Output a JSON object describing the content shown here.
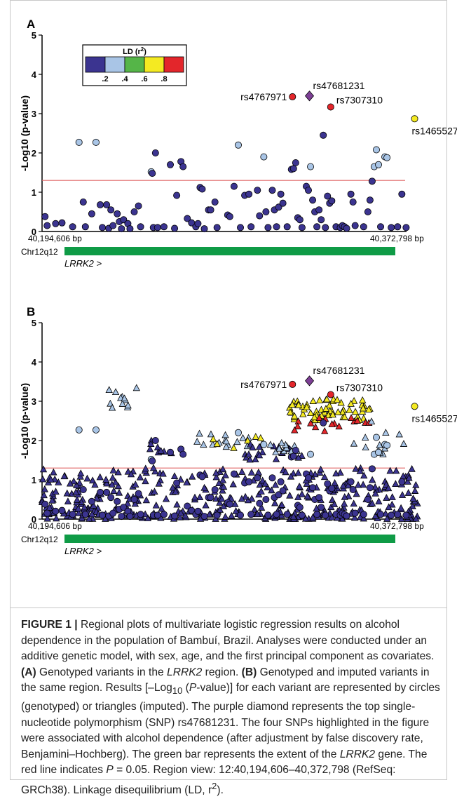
{
  "figure": {
    "panels": [
      "A",
      "B"
    ],
    "gene_label": "LRRK2 >",
    "chromosome_band": "Chr12q12",
    "x_start_label": "40,194,606 bp",
    "x_end_label": "40,372,798 bp",
    "y_axis_label": "-Log10 (p-value)",
    "legend": {
      "title_main": "LD (r",
      "title_sup": "2",
      "title_end": ")",
      "ticks": [
        ".2",
        ".4",
        ".6",
        ".8"
      ],
      "colors": [
        "#3b3490",
        "#a9c5e6",
        "#55b548",
        "#f4ea22",
        "#e3262b"
      ]
    },
    "threshold_color": "#e06666",
    "gene_bar_color": "#0f9b46",
    "top_snp_color": "#7d3f95"
  },
  "chart_data": [
    {
      "panel": "A",
      "type": "scatter",
      "xlim": [
        40194606,
        40372798
      ],
      "ylim": [
        0,
        5
      ],
      "yticks": [
        0,
        1,
        2,
        3,
        4,
        5
      ],
      "threshold_y": 1.3,
      "labeled_snps": [
        {
          "name": "rs47681231",
          "x": 40320500,
          "y": 3.45,
          "shape": "diamond",
          "ld": "top"
        },
        {
          "name": "rs4767971",
          "x": 40312500,
          "y": 3.43,
          "shape": "circle",
          "ld": 0.9
        },
        {
          "name": "rs7307310",
          "x": 40330500,
          "y": 3.17,
          "shape": "circle",
          "ld": 0.9
        },
        {
          "name": "rs1465527",
          "x": 40370000,
          "y": 2.87,
          "shape": "circle",
          "ld": 0.7
        }
      ],
      "points": [
        {
          "x": 40196000,
          "y": 0.38,
          "ld": 0.1
        },
        {
          "x": 40197000,
          "y": 0.15,
          "ld": 0.1
        },
        {
          "x": 40201000,
          "y": 0.2,
          "ld": 0.1
        },
        {
          "x": 40204000,
          "y": 0.22,
          "ld": 0.1
        },
        {
          "x": 40209000,
          "y": 0.12,
          "ld": 0.1
        },
        {
          "x": 40212000,
          "y": 2.27,
          "ld": 0.3
        },
        {
          "x": 40214000,
          "y": 0.75,
          "ld": 0.1
        },
        {
          "x": 40215000,
          "y": 0.12,
          "ld": 0.1
        },
        {
          "x": 40218000,
          "y": 0.45,
          "ld": 0.1
        },
        {
          "x": 40220000,
          "y": 2.27,
          "ld": 0.3
        },
        {
          "x": 40222000,
          "y": 0.68,
          "ld": 0.1
        },
        {
          "x": 40223000,
          "y": 0.1,
          "ld": 0.1
        },
        {
          "x": 40225000,
          "y": 0.68,
          "ld": 0.1
        },
        {
          "x": 40226000,
          "y": 0.08,
          "ld": 0.1
        },
        {
          "x": 40227000,
          "y": 0.55,
          "ld": 0.1
        },
        {
          "x": 40228000,
          "y": 0.15,
          "ld": 0.1
        },
        {
          "x": 40230000,
          "y": 0.45,
          "ld": 0.1
        },
        {
          "x": 40231000,
          "y": 0.25,
          "ld": 0.1
        },
        {
          "x": 40232000,
          "y": 0.07,
          "ld": 0.1
        },
        {
          "x": 40233000,
          "y": 0.3,
          "ld": 0.1
        },
        {
          "x": 40235000,
          "y": 0.2,
          "ld": 0.1
        },
        {
          "x": 40236000,
          "y": 0.07,
          "ld": 0.1
        },
        {
          "x": 40238000,
          "y": 0.5,
          "ld": 0.1
        },
        {
          "x": 40240000,
          "y": 0.65,
          "ld": 0.1
        },
        {
          "x": 40241000,
          "y": 0.12,
          "ld": 0.1
        },
        {
          "x": 40246000,
          "y": 1.52,
          "ld": 0.3
        },
        {
          "x": 40246500,
          "y": 1.48,
          "ld": 0.1
        },
        {
          "x": 40247000,
          "y": 0.1,
          "ld": 0.1
        },
        {
          "x": 40248000,
          "y": 2.0,
          "ld": 0.1
        },
        {
          "x": 40249000,
          "y": 0.1,
          "ld": 0.1
        },
        {
          "x": 40252000,
          "y": 0.12,
          "ld": 0.1
        },
        {
          "x": 40255000,
          "y": 1.7,
          "ld": 0.1
        },
        {
          "x": 40257000,
          "y": 0.08,
          "ld": 0.1
        },
        {
          "x": 40258000,
          "y": 0.92,
          "ld": 0.1
        },
        {
          "x": 40260000,
          "y": 1.78,
          "ld": 0.1
        },
        {
          "x": 40261000,
          "y": 1.65,
          "ld": 0.1
        },
        {
          "x": 40263000,
          "y": 0.33,
          "ld": 0.1
        },
        {
          "x": 40265000,
          "y": 0.22,
          "ld": 0.1
        },
        {
          "x": 40267000,
          "y": 0.12,
          "ld": 0.1
        },
        {
          "x": 40268000,
          "y": 0.2,
          "ld": 0.1
        },
        {
          "x": 40269000,
          "y": 1.12,
          "ld": 0.1
        },
        {
          "x": 40270000,
          "y": 1.08,
          "ld": 0.1
        },
        {
          "x": 40271000,
          "y": 0.07,
          "ld": 0.1
        },
        {
          "x": 40273000,
          "y": 0.55,
          "ld": 0.1
        },
        {
          "x": 40274000,
          "y": 0.55,
          "ld": 0.1
        },
        {
          "x": 40276000,
          "y": 0.75,
          "ld": 0.1
        },
        {
          "x": 40277000,
          "y": 0.1,
          "ld": 0.1
        },
        {
          "x": 40282000,
          "y": 0.42,
          "ld": 0.1
        },
        {
          "x": 40283000,
          "y": 0.38,
          "ld": 0.1
        },
        {
          "x": 40285000,
          "y": 1.15,
          "ld": 0.1
        },
        {
          "x": 40287000,
          "y": 2.2,
          "ld": 0.3
        },
        {
          "x": 40288000,
          "y": 0.1,
          "ld": 0.1
        },
        {
          "x": 40290000,
          "y": 0.92,
          "ld": 0.1
        },
        {
          "x": 40292000,
          "y": 0.95,
          "ld": 0.1
        },
        {
          "x": 40293000,
          "y": 0.12,
          "ld": 0.1
        },
        {
          "x": 40296000,
          "y": 1.05,
          "ld": 0.1
        },
        {
          "x": 40297000,
          "y": 0.4,
          "ld": 0.1
        },
        {
          "x": 40299000,
          "y": 1.9,
          "ld": 0.3
        },
        {
          "x": 40300000,
          "y": 0.5,
          "ld": 0.1
        },
        {
          "x": 40301000,
          "y": 0.1,
          "ld": 0.1
        },
        {
          "x": 40303000,
          "y": 1.05,
          "ld": 0.1
        },
        {
          "x": 40304000,
          "y": 0.55,
          "ld": 0.1
        },
        {
          "x": 40305000,
          "y": 0.12,
          "ld": 0.1
        },
        {
          "x": 40306000,
          "y": 0.62,
          "ld": 0.1
        },
        {
          "x": 40307000,
          "y": 0.95,
          "ld": 0.1
        },
        {
          "x": 40308000,
          "y": 0.72,
          "ld": 0.1
        },
        {
          "x": 40310000,
          "y": 0.12,
          "ld": 0.1
        },
        {
          "x": 40312000,
          "y": 1.58,
          "ld": 0.1
        },
        {
          "x": 40313000,
          "y": 1.6,
          "ld": 0.1
        },
        {
          "x": 40314000,
          "y": 1.75,
          "ld": 0.1
        },
        {
          "x": 40315000,
          "y": 0.35,
          "ld": 0.1
        },
        {
          "x": 40316000,
          "y": 0.3,
          "ld": 0.1
        },
        {
          "x": 40317000,
          "y": 0.1,
          "ld": 0.1
        },
        {
          "x": 40319000,
          "y": 1.15,
          "ld": 0.1
        },
        {
          "x": 40320000,
          "y": 1.05,
          "ld": 0.1
        },
        {
          "x": 40321000,
          "y": 1.65,
          "ld": 0.3
        },
        {
          "x": 40322000,
          "y": 0.8,
          "ld": 0.1
        },
        {
          "x": 40323000,
          "y": 0.5,
          "ld": 0.1
        },
        {
          "x": 40324000,
          "y": 0.12,
          "ld": 0.1
        },
        {
          "x": 40325000,
          "y": 0.55,
          "ld": 0.1
        },
        {
          "x": 40326000,
          "y": 0.3,
          "ld": 0.1
        },
        {
          "x": 40327000,
          "y": 2.45,
          "ld": 0.1
        },
        {
          "x": 40328000,
          "y": 0.1,
          "ld": 0.1
        },
        {
          "x": 40329000,
          "y": 0.9,
          "ld": 0.1
        },
        {
          "x": 40330000,
          "y": 0.72,
          "ld": 0.1
        },
        {
          "x": 40331000,
          "y": 0.78,
          "ld": 0.1
        },
        {
          "x": 40333000,
          "y": 0.12,
          "ld": 0.1
        },
        {
          "x": 40335000,
          "y": 0.1,
          "ld": 0.1
        },
        {
          "x": 40336000,
          "y": 0.15,
          "ld": 0.1
        },
        {
          "x": 40337000,
          "y": 0.12,
          "ld": 0.1
        },
        {
          "x": 40338000,
          "y": 0.08,
          "ld": 0.1
        },
        {
          "x": 40340000,
          "y": 0.95,
          "ld": 0.1
        },
        {
          "x": 40341000,
          "y": 0.75,
          "ld": 0.1
        },
        {
          "x": 40342000,
          "y": 0.15,
          "ld": 0.1
        },
        {
          "x": 40346000,
          "y": 0.12,
          "ld": 0.1
        },
        {
          "x": 40348000,
          "y": 0.5,
          "ld": 0.1
        },
        {
          "x": 40349000,
          "y": 0.8,
          "ld": 0.1
        },
        {
          "x": 40350000,
          "y": 1.28,
          "ld": 0.1
        },
        {
          "x": 40351000,
          "y": 1.65,
          "ld": 0.3
        },
        {
          "x": 40352000,
          "y": 2.08,
          "ld": 0.3
        },
        {
          "x": 40353000,
          "y": 1.7,
          "ld": 0.3
        },
        {
          "x": 40354000,
          "y": 0.12,
          "ld": 0.1
        },
        {
          "x": 40356000,
          "y": 1.9,
          "ld": 0.3
        },
        {
          "x": 40357000,
          "y": 1.88,
          "ld": 0.3
        },
        {
          "x": 40359000,
          "y": 0.1,
          "ld": 0.1
        },
        {
          "x": 40362000,
          "y": 0.12,
          "ld": 0.1
        },
        {
          "x": 40364000,
          "y": 0.95,
          "ld": 0.1
        },
        {
          "x": 40366000,
          "y": 0.1,
          "ld": 0.1
        }
      ]
    },
    {
      "panel": "B",
      "type": "scatter",
      "xlim": [
        40194606,
        40372798
      ],
      "ylim": [
        0,
        5
      ],
      "yticks": [
        0,
        1,
        2,
        3,
        4,
        5
      ],
      "threshold_y": 1.3,
      "labeled_snps": [
        {
          "name": "rs47681231",
          "x": 40320500,
          "y": 3.52,
          "shape": "diamond",
          "ld": "top"
        },
        {
          "name": "rs4767971",
          "x": 40312500,
          "y": 3.43,
          "shape": "circle",
          "ld": 0.9
        },
        {
          "name": "rs7307310",
          "x": 40330500,
          "y": 3.17,
          "shape": "circle",
          "ld": 0.9
        },
        {
          "name": "rs1465527",
          "x": 40370000,
          "y": 2.87,
          "shape": "circle",
          "ld": 0.7
        }
      ],
      "triangle_clusters": [
        {
          "x_range": [
            40225000,
            40240000
          ],
          "y_range": [
            2.8,
            3.35
          ],
          "count": 12,
          "ld": 0.3
        },
        {
          "x_range": [
            40244000,
            40256000
          ],
          "y_range": [
            1.6,
            2.0
          ],
          "count": 8,
          "ld": 0.1
        },
        {
          "x_range": [
            40266000,
            40300000
          ],
          "y_range": [
            1.8,
            2.2
          ],
          "count": 16,
          "ld": 0.3
        },
        {
          "x_range": [
            40266000,
            40300000
          ],
          "y_range": [
            1.8,
            2.1
          ],
          "count": 6,
          "ld": 0.7
        },
        {
          "x_range": [
            40290000,
            40320000
          ],
          "y_range": [
            1.5,
            1.9
          ],
          "count": 22,
          "ld": 0.1
        },
        {
          "x_range": [
            40302000,
            40318000
          ],
          "y_range": [
            1.7,
            1.95
          ],
          "count": 10,
          "ld": 0.3
        },
        {
          "x_range": [
            40310000,
            40350000
          ],
          "y_range": [
            2.5,
            3.05
          ],
          "count": 60,
          "ld": 0.7
        },
        {
          "x_range": [
            40310000,
            40350000
          ],
          "y_range": [
            2.2,
            2.6
          ],
          "count": 16,
          "ld": 0.9
        },
        {
          "x_range": [
            40340000,
            40368000
          ],
          "y_range": [
            1.6,
            2.5
          ],
          "count": 12,
          "ld": 0.3
        },
        {
          "x_range": [
            40194606,
            40372798
          ],
          "y_range": [
            0.0,
            1.3
          ],
          "count": 420,
          "ld": 0.1
        }
      ]
    }
  ],
  "caption": {
    "label": "FIGURE 1 |",
    "intro": " Regional plots of multivariate logistic regression results on alcohol dependence in the population of Bambuí, Brazil. Analyses were conducted under an additive genetic model, with sex, age, and the first principal component as covariates. ",
    "a_tag": "(A)",
    "a_text_1": " Genotyped variants in the ",
    "gene": "LRRK2",
    "a_text_2": " region. ",
    "b_tag": "(B)",
    "b_text_1": " Genotyped and imputed variants in the same region. Results [–Log",
    "sub10": "10",
    "b_text_2": " (",
    "p_italic": "P",
    "b_text_3": "-value)] for each variant are represented by circles (genotyped) or triangles (imputed). The purple diamond represents the top single-nucleotide polymorphism (SNP) rs47681231. The four SNPs highlighted in the figure were associated with alcohol dependence (after adjustment by false discovery rate, Benjamini–Hochberg). The green bar represents the extent of the ",
    "gene2": "LRRK2",
    "b_text_4": " gene. The red line indicates ",
    "p2": "P",
    "b_text_5": " = 0.05. Region view: 12:40,194,606–40,372,798 (RefSeq: GRCh38). Linkage disequilibrium (LD, r",
    "sup2": "2",
    "b_text_6": ")."
  }
}
